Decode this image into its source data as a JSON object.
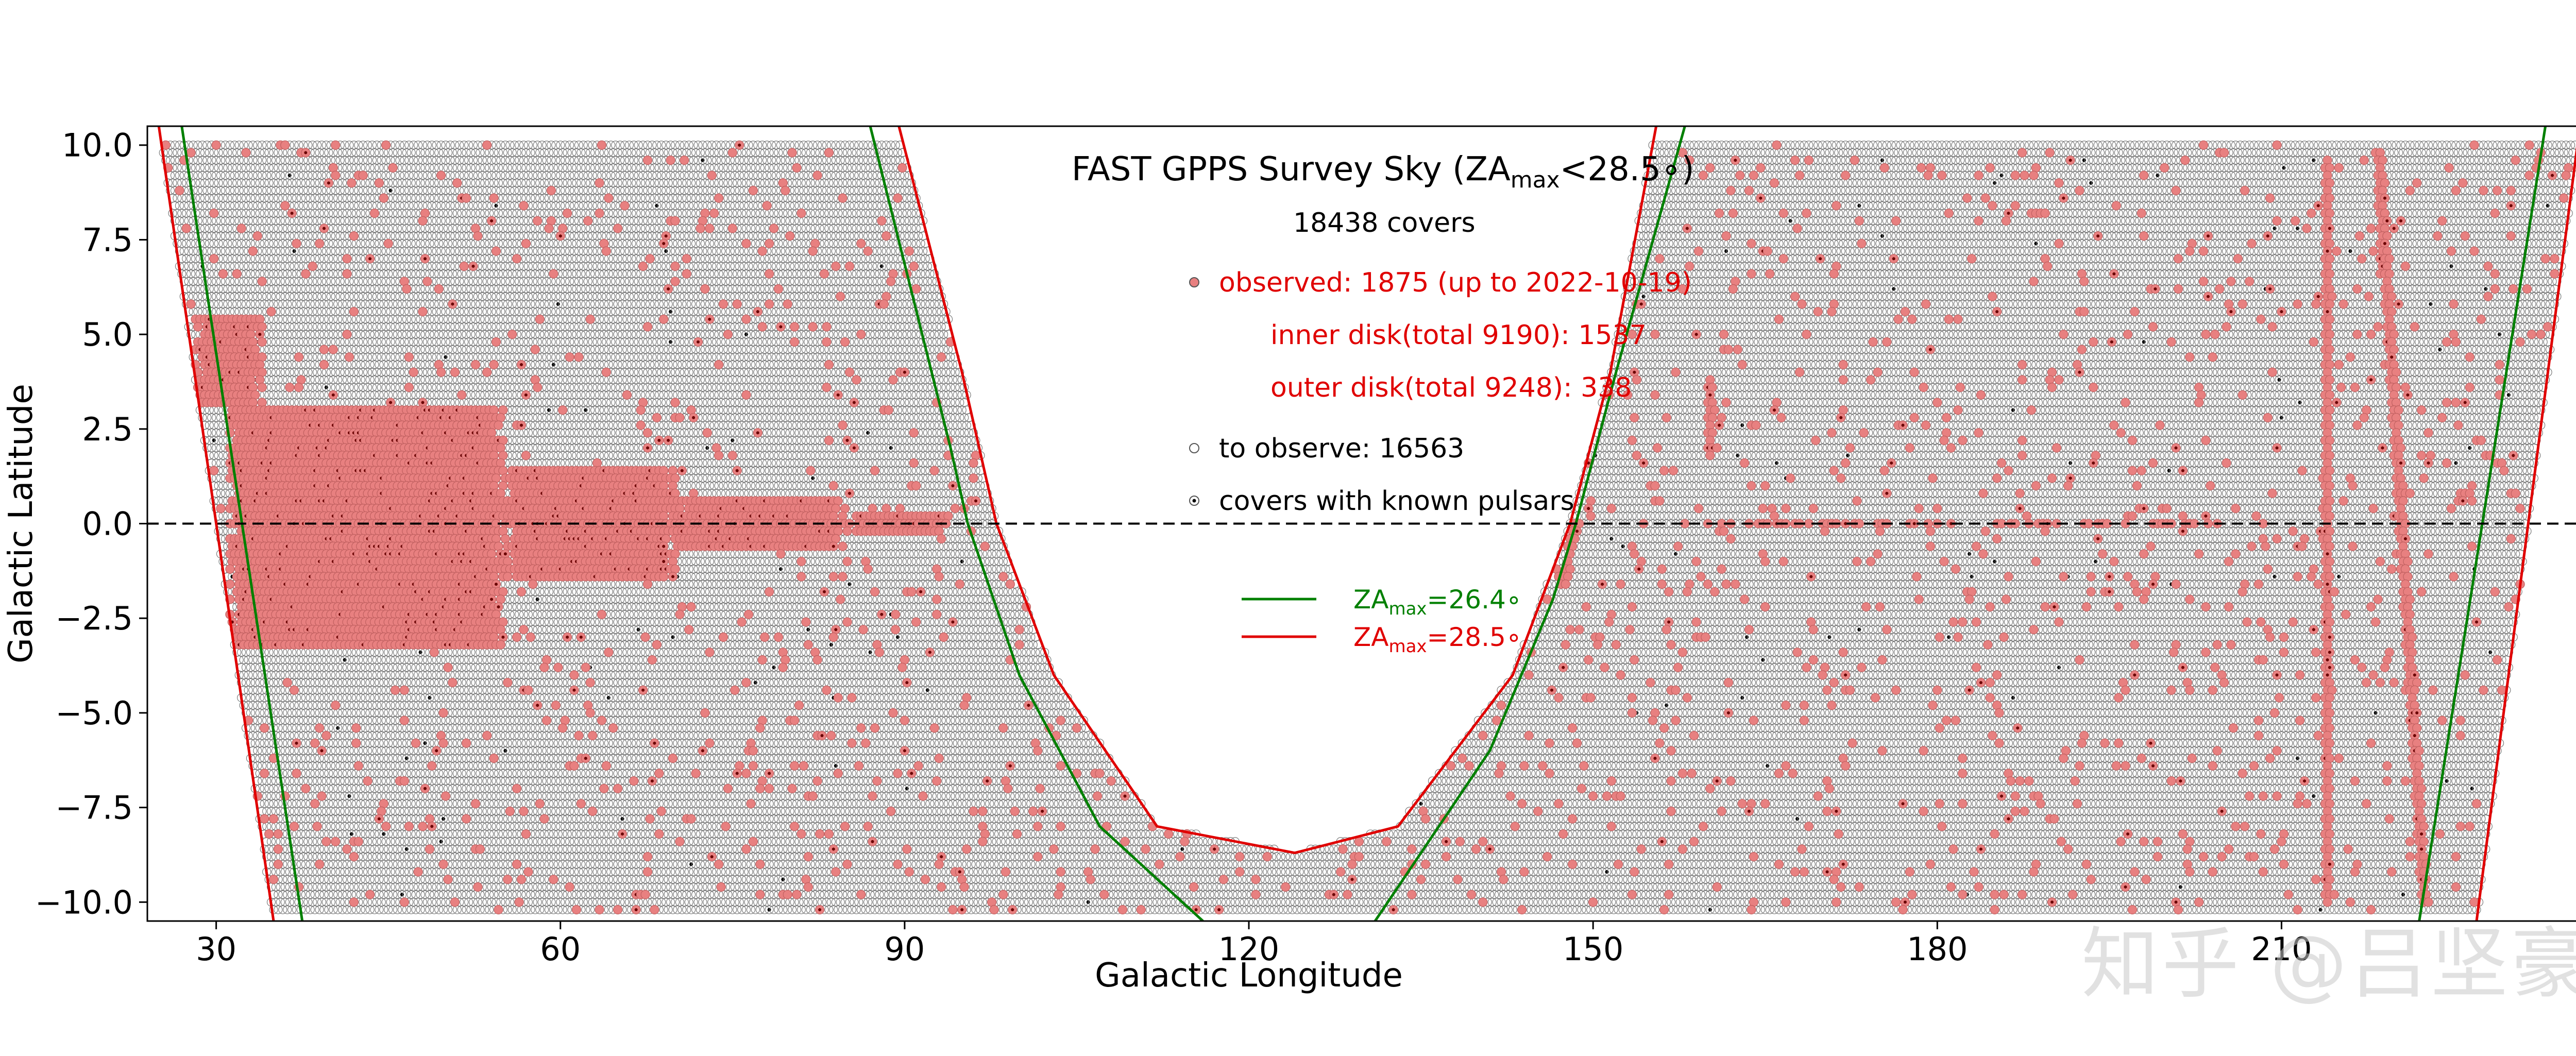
{
  "chart_data": {
    "type": "scatter",
    "title": "FAST GPPS Survey Sky (ZA",
    "title_sub": "max",
    "title_tail": "<28.5∘)",
    "xlabel": "Galactic Longitude",
    "ylabel": "Galactic Latitude",
    "xlim": [
      24,
      238
    ],
    "ylim": [
      -10.5,
      10.5
    ],
    "x_ticks": [
      30,
      60,
      90,
      120,
      150,
      180,
      210
    ],
    "x_tick_labels": [
      "30",
      "60",
      "90",
      "120",
      "150",
      "180",
      "210"
    ],
    "y_ticks": [
      10.0,
      7.5,
      5.0,
      2.5,
      0.0,
      -2.5,
      -5.0,
      -7.5,
      -10.0
    ],
    "y_tick_labels": [
      "10.0",
      "7.5",
      "5.0",
      "2.5",
      "0.0",
      "−2.5",
      "−5.0",
      "−7.5",
      "−10.0"
    ],
    "annotations": {
      "covers": "18438 covers",
      "observed": "observed: 1875 (up to 2022-10-19)",
      "inner": "inner disk(total 9190): 1537",
      "outer": "outer disk(total 9248): 338",
      "to_observe": "to observe: 16563",
      "known": "covers with known pulsars"
    },
    "legend": {
      "placement": "center",
      "entries": [
        {
          "prefix": "ZA",
          "sub": "max",
          "suffix": "=26.4∘",
          "color": "#008000"
        },
        {
          "prefix": "ZA",
          "sub": "max",
          "suffix": "=28.5∘",
          "color": "#e00000"
        }
      ]
    },
    "boundaries": {
      "za_28_5": {
        "color": "#e00000",
        "segments": [
          {
            "lat": [
              10.5,
              -10.5
            ],
            "lon": [
              25.0,
              35.0
            ]
          },
          {
            "lat": [
              10.5,
              4.0,
              0.0,
              -4.0,
              -8.0,
              -8.7,
              -8.0,
              -4.0,
              0.0,
              4.0,
              10.5
            ],
            "lon": [
              89.5,
              95.0,
              98.0,
              103.0,
              112.0,
              124.0,
              133.0,
              143.0,
              148.0,
              151.5,
              155.5
            ]
          },
          {
            "lat": [
              -10.5,
              10.5
            ],
            "lon": [
              227.0,
              236.0
            ]
          }
        ]
      },
      "za_26_4": {
        "color": "#008000",
        "segments": [
          {
            "lat": [
              10.5,
              -10.5
            ],
            "lon": [
              27.0,
              37.5
            ]
          },
          {
            "lat": [
              10.5,
              2.0,
              0.0,
              -4.0,
              -8.0,
              -10.5
            ],
            "lon": [
              87.0,
              94.0,
              95.5,
              100.0,
              107.0,
              116.0
            ]
          },
          {
            "lat": [
              -10.5,
              -6.0,
              -2.0,
              0.0,
              4.0,
              10.5
            ],
            "lon": [
              131.0,
              141.0,
              146.5,
              148.5,
              152.0,
              158.0
            ]
          },
          {
            "lat": [
              -10.5,
              10.5
            ],
            "lon": [
              222.0,
              233.0
            ]
          }
        ]
      }
    },
    "reference_line": {
      "y": 0.0,
      "style": "dashed",
      "color": "#000000"
    },
    "series": [
      {
        "role": "to-observe",
        "marker": "open-circle",
        "edge": "#555555",
        "face": "none",
        "count": 16563
      },
      {
        "role": "observed",
        "marker": "filled-circle",
        "face": "#e88080",
        "edge": "#c06060",
        "count": 1875,
        "regions": [
          {
            "lon": [
              31,
              55
            ],
            "lat": [
              -3.2,
              3.2
            ]
          },
          {
            "lon": [
              28,
              34
            ],
            "lat": [
              3.2,
              5.6
            ]
          },
          {
            "lon": [
              55,
              70
            ],
            "lat": [
              -1.4,
              1.6
            ]
          },
          {
            "lon": [
              70,
              85
            ],
            "lat": [
              -0.7,
              0.7
            ]
          },
          {
            "lon": [
              85,
              94
            ],
            "lat": [
              -0.3,
              0.3
            ]
          }
        ],
        "lines": [
          {
            "lon": [
              214.0,
              214.0
            ],
            "lat": [
              -10.0,
              9.6
            ]
          },
          {
            "lon": [
              218.5,
              222.5
            ],
            "lat": [
              9.8,
              -10.0
            ]
          },
          {
            "lon": [
              160.2,
              160.2
            ],
            "lat": [
              1.8,
              3.7
            ]
          },
          {
            "lon": [
              147.5,
              148.5
            ],
            "lat": [
              -1.5,
              0.0
            ]
          },
          {
            "lon": [
              160,
              205
            ],
            "lat": [
              0.0,
              0.0
            ]
          }
        ]
      },
      {
        "role": "known-pulsar",
        "marker": "star",
        "color": "#000000"
      }
    ],
    "grid": false,
    "frame_colors": {
      "axes": "#000000",
      "legend_text_red": "#e00000",
      "legend_text_green": "#008000"
    }
  },
  "watermark": "知乎 @吕坚豪"
}
